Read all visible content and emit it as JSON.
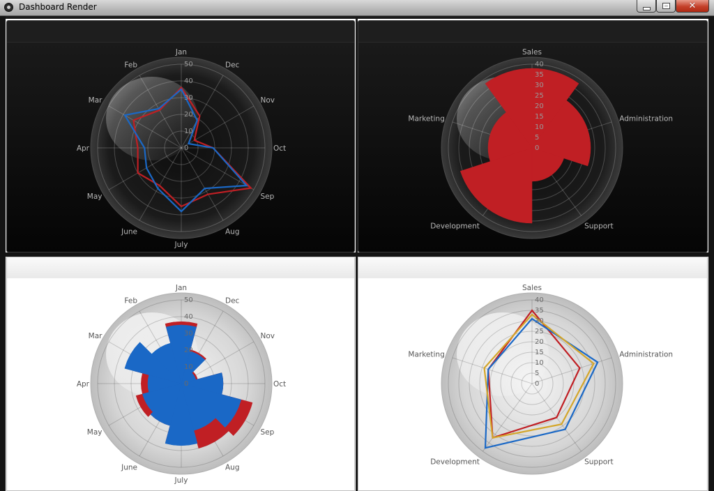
{
  "window": {
    "title": "Dashboard Render",
    "minimize_symbol": "",
    "maximize_symbol": "",
    "close_symbol": "✕"
  },
  "colors": {
    "red": "#c01f24",
    "blue": "#1a68c6",
    "gold": "#d4a62a",
    "dark_bg": "#0d0d0d",
    "light_bg": "#ffffff"
  },
  "charts": [
    {
      "id": "months_line_dark",
      "chart_data": {
        "type": "radar-line",
        "theme": "dark",
        "categories": [
          "Jan",
          "Dec",
          "Nov",
          "Oct",
          "Sep",
          "Aug",
          "July",
          "June",
          "May",
          "Apr",
          "Mar",
          "Feb"
        ],
        "ticks": [
          "0",
          "10",
          "20",
          "30",
          "40",
          "50"
        ],
        "rmax": 50,
        "series": [
          {
            "color": "#c01f24",
            "values": [
              36,
              22,
              9,
              19,
              48,
              32,
              35,
              26,
              30,
              26,
              33,
              26
            ]
          },
          {
            "color": "#1a68c6",
            "values": [
              35,
              19,
              5,
              19,
              45,
              28,
              38,
              28,
              24,
              22,
              39,
              27
            ]
          }
        ]
      }
    },
    {
      "id": "departments_bar_dark",
      "chart_data": {
        "type": "radar-bar",
        "theme": "dark",
        "categories": [
          "Sales",
          "Administration",
          "Support",
          "Development",
          "Marketing"
        ],
        "ticks": [
          "0",
          "5",
          "10",
          "15",
          "20",
          "25",
          "30",
          "35",
          "40"
        ],
        "rmax": 40,
        "series": [
          {
            "color": "#c01f24",
            "values": [
              38,
              28,
              16,
              36,
              21
            ]
          }
        ]
      }
    },
    {
      "id": "months_bar_light",
      "chart_data": {
        "type": "radar-bar",
        "theme": "light",
        "categories": [
          "Jan",
          "Dec",
          "Nov",
          "Oct",
          "Sep",
          "Aug",
          "July",
          "June",
          "May",
          "Apr",
          "Mar",
          "Feb"
        ],
        "ticks": [
          "0",
          "10",
          "20",
          "30",
          "40",
          "50"
        ],
        "rmax": 50,
        "series": [
          {
            "color": "#c01f24",
            "values": [
              37,
              21,
              10,
              25,
              44,
              40,
              36,
              26,
              28,
              24,
              29,
              22
            ]
          },
          {
            "color": "#1a68c6",
            "values": [
              35,
              20,
              9,
              25,
              37,
              29,
              37,
              26,
              24,
              20,
              35,
              25
            ]
          }
        ]
      }
    },
    {
      "id": "departments_line_light",
      "chart_data": {
        "type": "radar-line",
        "theme": "light",
        "categories": [
          "Sales",
          "Administration",
          "Support",
          "Development",
          "Marketing"
        ],
        "ticks": [
          "0",
          "5",
          "10",
          "15",
          "20",
          "25",
          "30",
          "35",
          "40"
        ],
        "rmax": 40,
        "series": [
          {
            "color": "#c01f24",
            "values": [
              35,
              24,
              20,
              32,
              22
            ]
          },
          {
            "color": "#1a68c6",
            "values": [
              31,
              33,
              27,
              38,
              22
            ]
          },
          {
            "color": "#d4a62a",
            "values": [
              33,
              31,
              24,
              32,
              24
            ]
          }
        ]
      }
    }
  ]
}
